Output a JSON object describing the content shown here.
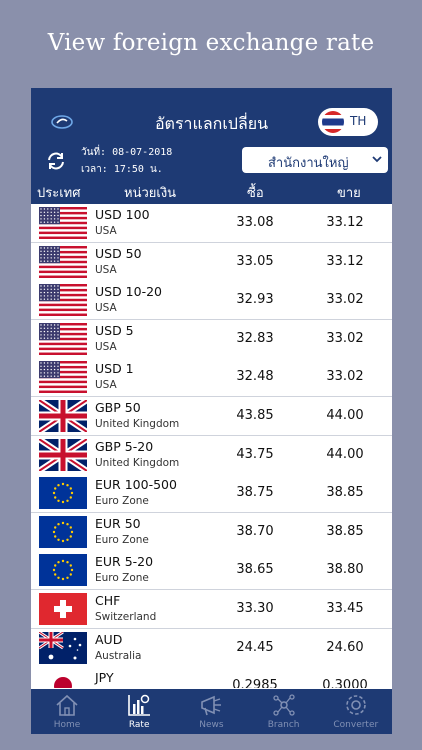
{
  "promo_title": "View foreign exchange rate",
  "header": {
    "title": "อัตราแลกเปลี่ยน",
    "lang_label": "TH"
  },
  "info": {
    "date_label": "วันที่: 08-07-2018",
    "time_label": "เวลา: 17:50 น.",
    "branch": "สำนักงานใหญ่"
  },
  "columns": {
    "country": "ประเทศ",
    "currency": "หน่วยเงิน",
    "buy": "ซื้อ",
    "sell": "ขาย"
  },
  "rates": [
    {
      "code": "USD 100",
      "country": "USA",
      "buy": "33.08",
      "sell": "33.12",
      "flag": "us-flag-icon"
    },
    {
      "code": "USD 50",
      "country": "USA",
      "buy": "33.05",
      "sell": "33.12",
      "flag": "us-flag-icon"
    },
    {
      "code": "USD 10-20",
      "country": "USA",
      "buy": "32.93",
      "sell": "33.02",
      "flag": "us-flag-icon"
    },
    {
      "code": "USD 5",
      "country": "USA",
      "buy": "32.83",
      "sell": "33.02",
      "flag": "us-flag-icon"
    },
    {
      "code": "USD 1",
      "country": "USA",
      "buy": "32.48",
      "sell": "33.02",
      "flag": "us-flag-icon"
    },
    {
      "code": "GBP 50",
      "country": "United Kingdom",
      "buy": "43.85",
      "sell": "44.00",
      "flag": "uk-flag-icon"
    },
    {
      "code": "GBP 5-20",
      "country": "United Kingdom",
      "buy": "43.75",
      "sell": "44.00",
      "flag": "uk-flag-icon"
    },
    {
      "code": "EUR 100-500",
      "country": "Euro Zone",
      "buy": "38.75",
      "sell": "38.85",
      "flag": "eu-flag-icon"
    },
    {
      "code": "EUR 50",
      "country": "Euro Zone",
      "buy": "38.70",
      "sell": "38.85",
      "flag": "eu-flag-icon"
    },
    {
      "code": "EUR 5-20",
      "country": "Euro Zone",
      "buy": "38.65",
      "sell": "38.80",
      "flag": "eu-flag-icon"
    },
    {
      "code": "CHF",
      "country": "Switzerland",
      "buy": "33.30",
      "sell": "33.45",
      "flag": "ch-flag-icon"
    },
    {
      "code": "AUD",
      "country": "Australia",
      "buy": "24.45",
      "sell": "24.60",
      "flag": "au-flag-icon"
    },
    {
      "code": "JPY",
      "country": "",
      "buy": "0.2985",
      "sell": "0.3000",
      "flag": "jp-flag-icon"
    }
  ],
  "tabs": [
    {
      "label": "Home",
      "icon": "home-icon"
    },
    {
      "label": "Rate",
      "icon": "rate-chart-icon",
      "active": true
    },
    {
      "label": "News",
      "icon": "megaphone-icon"
    },
    {
      "label": "Branch",
      "icon": "network-icon"
    },
    {
      "label": "Converter",
      "icon": "gear-icon"
    }
  ],
  "colors": {
    "brand_navy": "#1e3a74",
    "background": "#8a90ab",
    "tab_inactive": "#8190b4"
  }
}
